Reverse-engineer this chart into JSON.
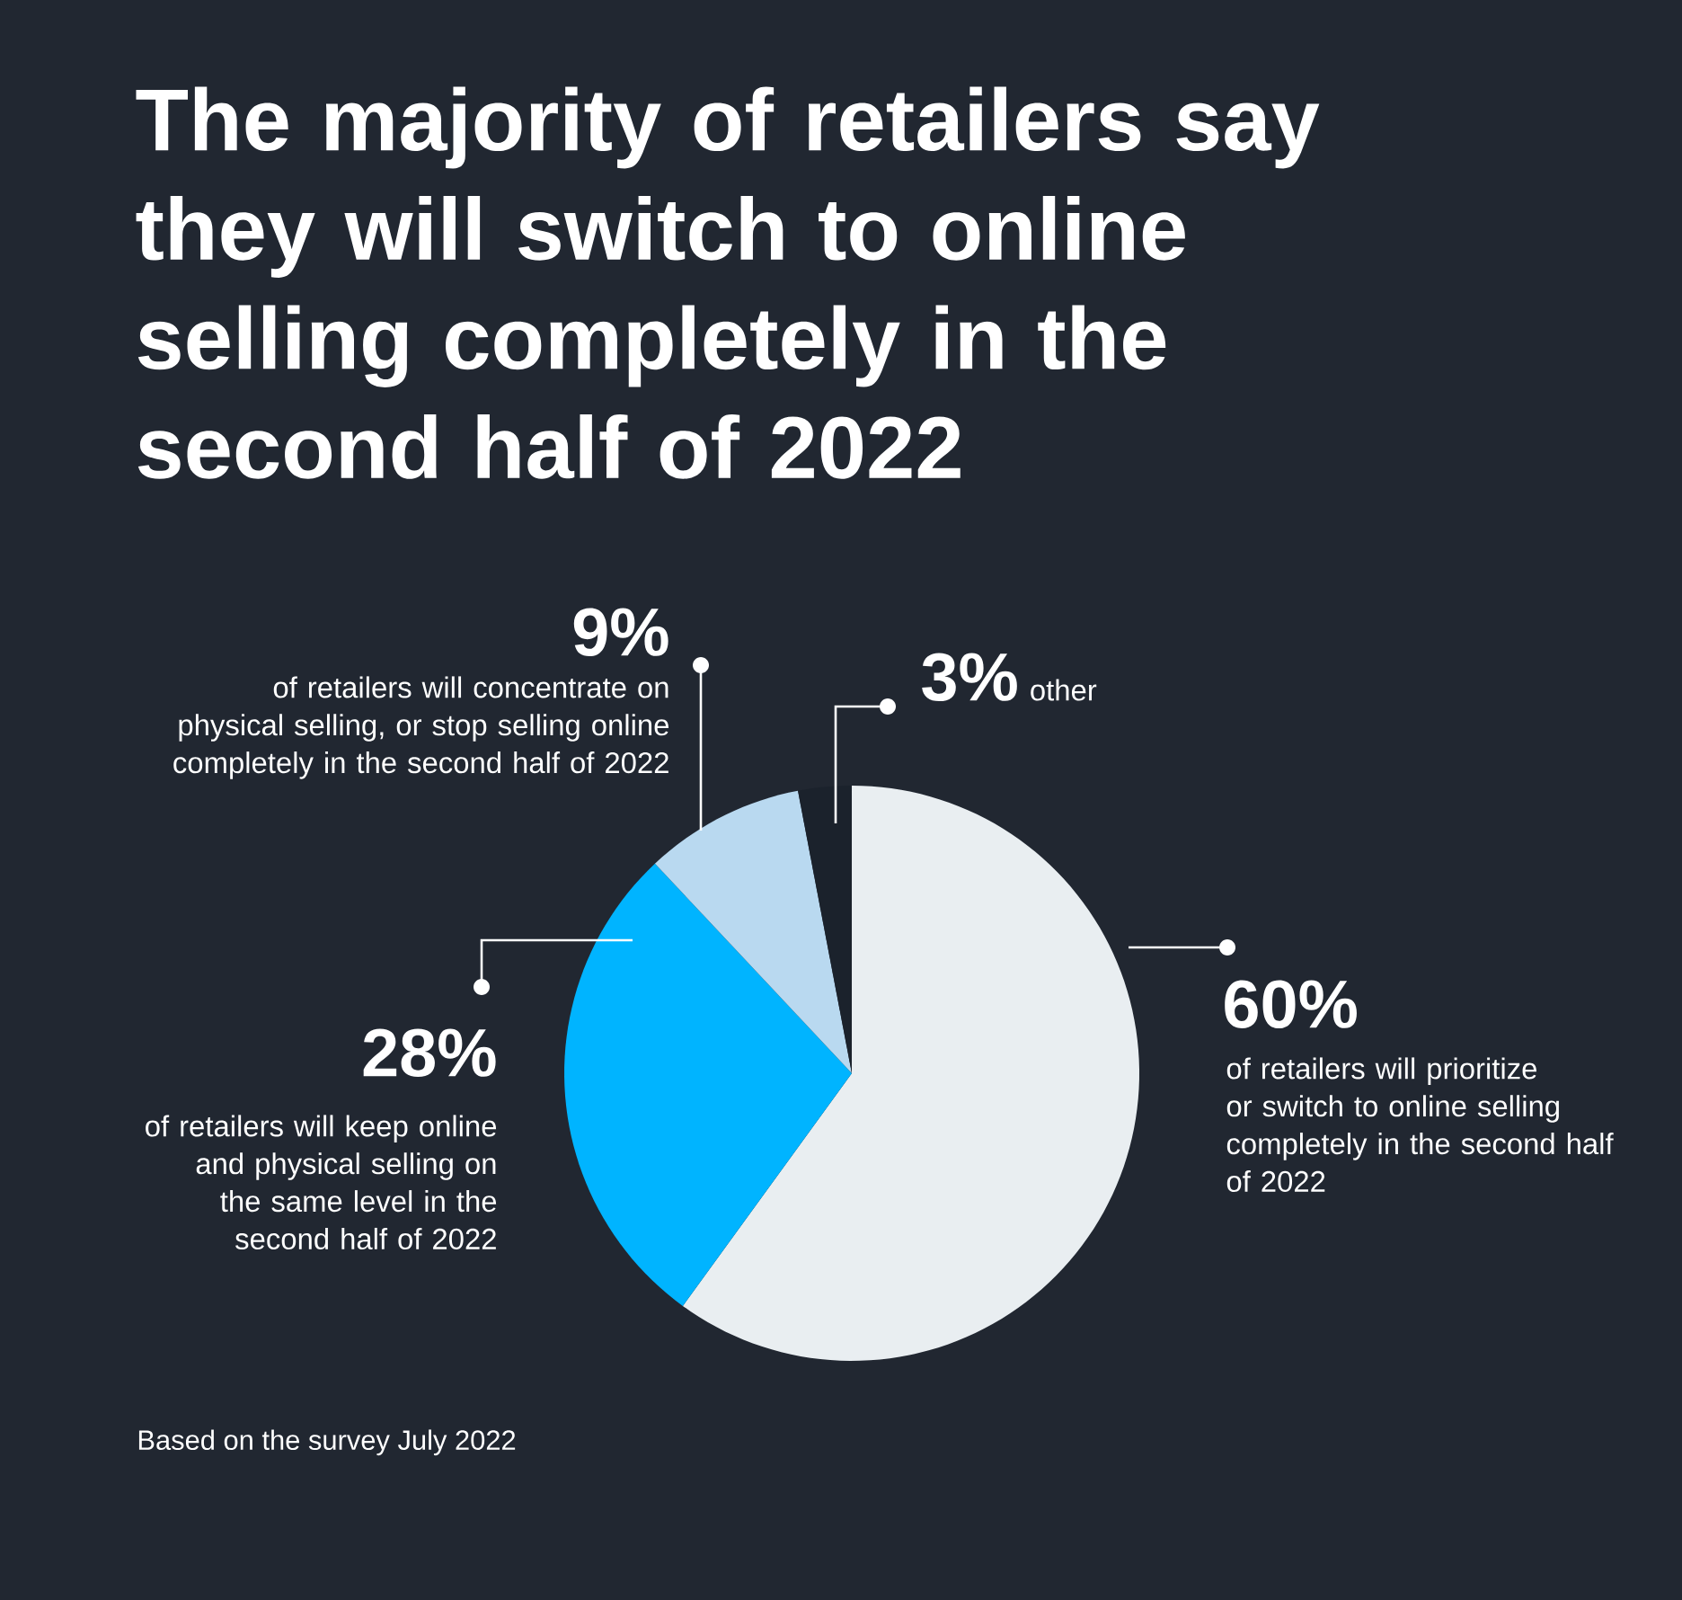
{
  "chart_data": {
    "type": "pie",
    "title": "The majority of retailers say they will switch to online selling completely in the second half of 2022",
    "categories": [
      "of retailers will prioritize or switch to online selling completely in the second half of 2022",
      "of retailers will keep online and physical selling on the same level in the second half of 2022",
      "of retailers will concentrate on physical selling, or stop selling online completely in the second half of 2022",
      "other"
    ],
    "values": [
      60,
      28,
      9,
      3
    ],
    "colors": [
      "#e9eef1",
      "#00b4ff",
      "#b9d9f0",
      "#1b222c"
    ],
    "value_labels": [
      "60%",
      "28%",
      "9%",
      "3%"
    ],
    "annotations": [
      "Based on the survey July 2022"
    ]
  }
}
